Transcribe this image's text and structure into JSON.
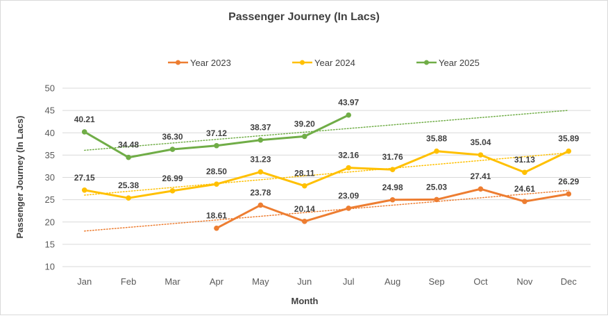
{
  "chart_data": {
    "type": "line",
    "title": "Passenger Journey (In Lacs)",
    "xlabel": "Month",
    "ylabel": "Passenger Journey (In Lacs)",
    "categories": [
      "Jan",
      "Feb",
      "Mar",
      "Apr",
      "May",
      "Jun",
      "Jul",
      "Aug",
      "Sep",
      "Oct",
      "Nov",
      "Dec"
    ],
    "ylim": [
      10,
      50
    ],
    "yticks": [
      10,
      15,
      20,
      25,
      30,
      35,
      40,
      45,
      50
    ],
    "grid": true,
    "legend_position": "top",
    "trendlines": true,
    "series": [
      {
        "name": "Year 2023",
        "color": "#ed7d31",
        "values": [
          null,
          null,
          null,
          18.61,
          23.78,
          20.14,
          23.09,
          24.98,
          25.03,
          27.41,
          24.61,
          26.29
        ],
        "labels": [
          "",
          "",
          "",
          "18.61",
          "23.78",
          "20.14",
          "23.09",
          "24.98",
          "25.03",
          "27.41",
          "24.61",
          "26.29"
        ]
      },
      {
        "name": "Year 2024",
        "color": "#ffc000",
        "values": [
          27.15,
          25.38,
          26.99,
          28.5,
          31.23,
          28.11,
          32.16,
          31.76,
          35.88,
          35.04,
          31.13,
          35.89
        ],
        "labels": [
          "27.15",
          "25.38",
          "26.99",
          "28.50",
          "31.23",
          "28.11",
          "32.16",
          "31.76",
          "35.88",
          "35.04",
          "31.13",
          "35.89"
        ]
      },
      {
        "name": "Year 2025",
        "color": "#70ad47",
        "values": [
          40.21,
          34.48,
          36.3,
          37.12,
          38.37,
          39.2,
          43.97,
          null,
          null,
          null,
          null,
          null
        ],
        "labels": [
          "40.21",
          "34.48",
          "36.30",
          "37.12",
          "38.37",
          "39.20",
          "43.97",
          "",
          "",
          "",
          "",
          ""
        ]
      }
    ]
  }
}
